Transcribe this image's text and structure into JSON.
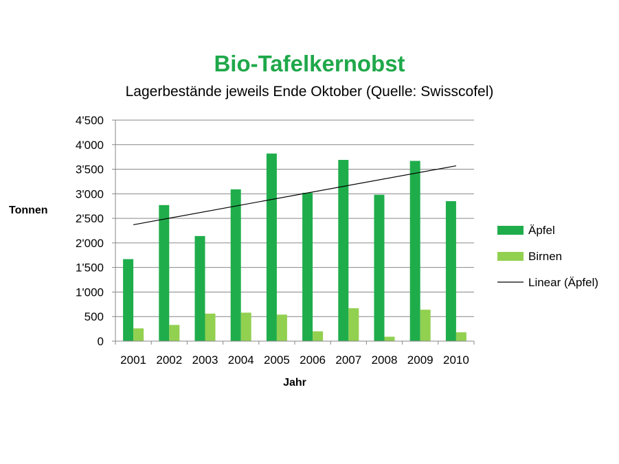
{
  "chart_data": {
    "type": "bar",
    "title": "Bio-Tafelkernobst",
    "subtitle": "Lagerbestände jeweils Ende Oktober (Quelle: Swisscofel)",
    "xlabel": "Jahr",
    "ylabel": "Tonnen",
    "ylim": [
      0,
      4500
    ],
    "yticks": [
      0,
      500,
      1000,
      1500,
      2000,
      2500,
      3000,
      3500,
      4000,
      4500
    ],
    "ytick_labels": [
      "0",
      "500",
      "1'000",
      "1'500",
      "2'000",
      "2'500",
      "3'000",
      "3'500",
      "4'000",
      "4'500"
    ],
    "grid": true,
    "legend_position": "right",
    "categories": [
      "2001",
      "2002",
      "2003",
      "2004",
      "2005",
      "2006",
      "2007",
      "2008",
      "2009",
      "2010"
    ],
    "series": [
      {
        "name": "Äpfel",
        "color": "#1fad4b",
        "values": [
          1670,
          2770,
          2140,
          3090,
          3820,
          3020,
          3690,
          2980,
          3670,
          2850
        ]
      },
      {
        "name": "Birnen",
        "color": "#92d050",
        "values": [
          260,
          330,
          560,
          580,
          540,
          200,
          670,
          90,
          640,
          180
        ]
      }
    ],
    "trendline": {
      "name": "Linear (Äpfel)",
      "color": "#000000",
      "type": "linear",
      "of_series": "Äpfel",
      "start": 2370,
      "end": 3570
    }
  }
}
